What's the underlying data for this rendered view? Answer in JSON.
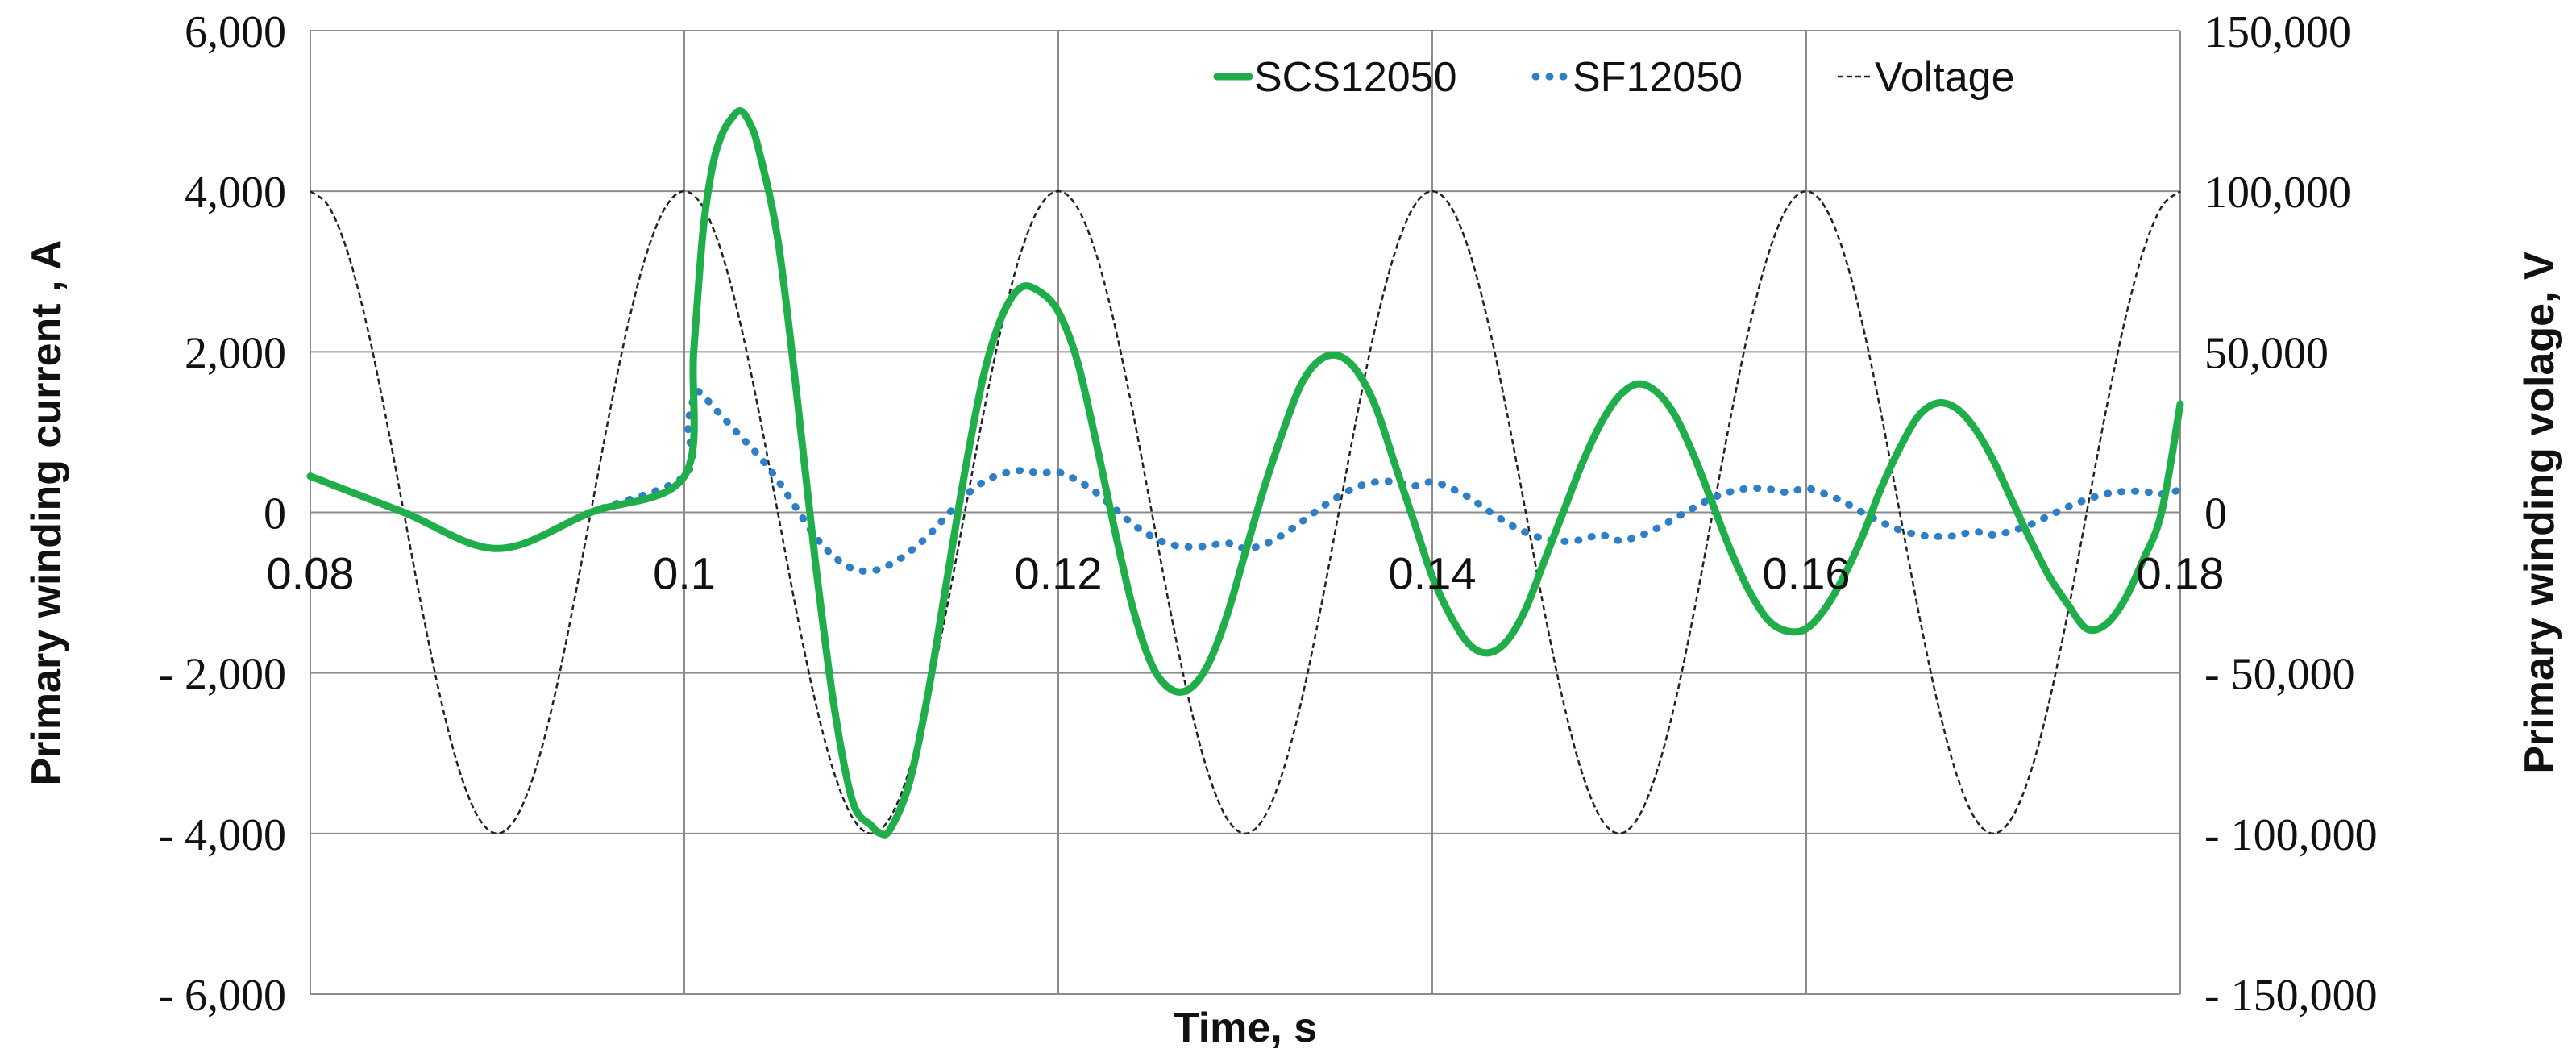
{
  "chart_data": {
    "type": "line",
    "xlabel": "Time, s",
    "ylabel_left": "Primary winding current , A",
    "ylabel_right": "Primary winding volage, V",
    "xlim": [
      0.08,
      0.18
    ],
    "ylim_left": [
      -6000,
      6000
    ],
    "ylim_right": [
      -150000,
      150000
    ],
    "x_ticks": [
      0.08,
      0.1,
      0.12,
      0.14,
      0.16,
      0.18
    ],
    "x_tick_labels": [
      "0.08",
      "0.1",
      "0.12",
      "0.14",
      "0.16",
      "0.18"
    ],
    "y_left_ticks": [
      6000,
      4000,
      2000,
      0,
      -2000,
      -4000,
      -6000
    ],
    "y_left_tick_labels": [
      "6,000",
      "4,000",
      "2,000",
      "0",
      "- 2,000",
      "- 4,000",
      "- 6,000"
    ],
    "y_right_ticks": [
      150000,
      100000,
      50000,
      0,
      -50000,
      -100000,
      -150000
    ],
    "y_right_tick_labels": [
      "150,000",
      "100,000",
      "50,000",
      "0",
      "- 50,000",
      "- 100,000",
      "- 150,000"
    ],
    "grid": {
      "vertical": true,
      "horizontal": true
    },
    "legend": {
      "position": "top-right"
    },
    "series": [
      {
        "name": "SCS12050",
        "axis": "left",
        "color": "#1fae4a",
        "style": "solid",
        "x": [
          0.08,
          0.085,
          0.09,
          0.095,
          0.1,
          0.1005,
          0.101,
          0.1015,
          0.102,
          0.1025,
          0.103,
          0.1035,
          0.104,
          0.105,
          0.106,
          0.107,
          0.108,
          0.109,
          0.11,
          0.1105,
          0.111,
          0.112,
          0.113,
          0.114,
          0.115,
          0.116,
          0.117,
          0.118,
          0.119,
          0.12,
          0.121,
          0.122,
          0.123,
          0.124,
          0.125,
          0.126,
          0.127,
          0.128,
          0.129,
          0.13,
          0.131,
          0.132,
          0.133,
          0.134,
          0.135,
          0.136,
          0.137,
          0.138,
          0.139,
          0.14,
          0.141,
          0.142,
          0.143,
          0.144,
          0.145,
          0.146,
          0.147,
          0.148,
          0.149,
          0.15,
          0.151,
          0.152,
          0.153,
          0.154,
          0.155,
          0.156,
          0.157,
          0.158,
          0.159,
          0.16,
          0.161,
          0.162,
          0.163,
          0.164,
          0.165,
          0.166,
          0.167,
          0.168,
          0.169,
          0.17,
          0.171,
          0.172,
          0.173,
          0.174,
          0.175,
          0.176,
          0.177,
          0.178,
          0.179,
          0.18
        ],
        "y": [
          450,
          0,
          -450,
          0,
          450,
          2000,
          3500,
          4300,
          4700,
          4900,
          5000,
          4850,
          4500,
          3400,
          1500,
          -600,
          -2400,
          -3600,
          -3900,
          -4000,
          -3950,
          -3400,
          -2300,
          -900,
          500,
          1700,
          2450,
          2800,
          2750,
          2500,
          1900,
          900,
          -200,
          -1200,
          -1900,
          -2200,
          -2200,
          -1900,
          -1300,
          -500,
          300,
          1000,
          1600,
          1900,
          1950,
          1750,
          1300,
          600,
          -100,
          -800,
          -1300,
          -1650,
          -1750,
          -1600,
          -1200,
          -600,
          0,
          600,
          1100,
          1450,
          1600,
          1500,
          1200,
          700,
          100,
          -500,
          -1000,
          -1350,
          -1480,
          -1450,
          -1200,
          -800,
          -300,
          300,
          800,
          1200,
          1360,
          1300,
          1050,
          650,
          150,
          -350,
          -800,
          -1150,
          -1450,
          -1400,
          -1100,
          -600,
          0,
          1350
        ]
      },
      {
        "name": "SF12050",
        "axis": "left",
        "color": "#2e7fc6",
        "style": "dotted",
        "x": [
          0.08,
          0.085,
          0.09,
          0.095,
          0.1,
          0.1002,
          0.1006,
          0.101,
          0.102,
          0.103,
          0.104,
          0.105,
          0.106,
          0.107,
          0.108,
          0.109,
          0.11,
          0.111,
          0.112,
          0.113,
          0.114,
          0.115,
          0.116,
          0.117,
          0.118,
          0.119,
          0.12,
          0.121,
          0.122,
          0.123,
          0.124,
          0.125,
          0.126,
          0.127,
          0.128,
          0.129,
          0.13,
          0.131,
          0.132,
          0.133,
          0.134,
          0.135,
          0.136,
          0.137,
          0.138,
          0.139,
          0.14,
          0.141,
          0.142,
          0.143,
          0.144,
          0.145,
          0.146,
          0.147,
          0.148,
          0.149,
          0.15,
          0.151,
          0.152,
          0.153,
          0.154,
          0.155,
          0.156,
          0.157,
          0.158,
          0.159,
          0.16,
          0.161,
          0.162,
          0.163,
          0.164,
          0.165,
          0.166,
          0.167,
          0.168,
          0.169,
          0.17,
          0.171,
          0.172,
          0.173,
          0.174,
          0.175,
          0.176,
          0.177,
          0.178,
          0.179,
          0.18
        ],
        "y": [
          450,
          0,
          -450,
          0,
          450,
          1100,
          1480,
          1450,
          1200,
          950,
          700,
          400,
          50,
          -300,
          -550,
          -700,
          -730,
          -650,
          -500,
          -300,
          -50,
          200,
          380,
          480,
          520,
          490,
          500,
          400,
          250,
          50,
          -150,
          -300,
          -400,
          -430,
          -420,
          -380,
          -450,
          -400,
          -280,
          -120,
          50,
          200,
          320,
          380,
          380,
          330,
          380,
          300,
          180,
          20,
          -130,
          -250,
          -330,
          -360,
          -340,
          -280,
          -350,
          -300,
          -200,
          -70,
          60,
          180,
          260,
          300,
          290,
          250,
          300,
          230,
          130,
          0,
          -120,
          -220,
          -280,
          -300,
          -290,
          -240,
          -280,
          -230,
          -150,
          -40,
          70,
          160,
          230,
          260,
          260,
          230,
          280
        ]
      },
      {
        "name": "Voltage",
        "axis": "right",
        "color": "#222222",
        "style": "dashed",
        "x": [
          0.08,
          0.081,
          0.082,
          0.083,
          0.084,
          0.085,
          0.086,
          0.087,
          0.088,
          0.089,
          0.09,
          0.091,
          0.092,
          0.093,
          0.094,
          0.095,
          0.096,
          0.097,
          0.098,
          0.099,
          0.1,
          0.101,
          0.102,
          0.103,
          0.104,
          0.105,
          0.106,
          0.107,
          0.108,
          0.109,
          0.11,
          0.111,
          0.112,
          0.113,
          0.114,
          0.115,
          0.116,
          0.117,
          0.118,
          0.119,
          0.12,
          0.121,
          0.122,
          0.123,
          0.124,
          0.125,
          0.126,
          0.127,
          0.128,
          0.129,
          0.13,
          0.131,
          0.132,
          0.133,
          0.134,
          0.135,
          0.136,
          0.137,
          0.138,
          0.139,
          0.14,
          0.141,
          0.142,
          0.143,
          0.144,
          0.145,
          0.146,
          0.147,
          0.148,
          0.149,
          0.15,
          0.151,
          0.152,
          0.153,
          0.154,
          0.155,
          0.156,
          0.157,
          0.158,
          0.159,
          0.16,
          0.161,
          0.162,
          0.163,
          0.164,
          0.165,
          0.166,
          0.167,
          0.168,
          0.169,
          0.17,
          0.171,
          0.172,
          0.173,
          0.174,
          0.175,
          0.176,
          0.177,
          0.178,
          0.179,
          0.18
        ],
        "y": [
          100000,
          95106,
          80902,
          58779,
          30902,
          0,
          -30902,
          -58779,
          -80902,
          -95106,
          -100000,
          -95106,
          -80902,
          -58779,
          -30902,
          0,
          30902,
          58779,
          80902,
          95106,
          100000,
          95106,
          80902,
          58779,
          30902,
          0,
          -30902,
          -58779,
          -80902,
          -95106,
          -100000,
          -95106,
          -80902,
          -58779,
          -30902,
          0,
          30902,
          58779,
          80902,
          95106,
          100000,
          95106,
          80902,
          58779,
          30902,
          0,
          -30902,
          -58779,
          -80902,
          -95106,
          -100000,
          -95106,
          -80902,
          -58779,
          -30902,
          0,
          30902,
          58779,
          80902,
          95106,
          100000,
          95106,
          80902,
          58779,
          30902,
          0,
          -30902,
          -58779,
          -80902,
          -95106,
          -100000,
          -95106,
          -80902,
          -58779,
          -30902,
          0,
          30902,
          58779,
          80902,
          95106,
          100000,
          95106,
          80902,
          58779,
          30902,
          0,
          -30902,
          -58779,
          -80902,
          -95106,
          -100000,
          -95106,
          -80902,
          -58779,
          -30902,
          0,
          30902,
          58779,
          80902,
          95106,
          100000
        ]
      }
    ]
  }
}
